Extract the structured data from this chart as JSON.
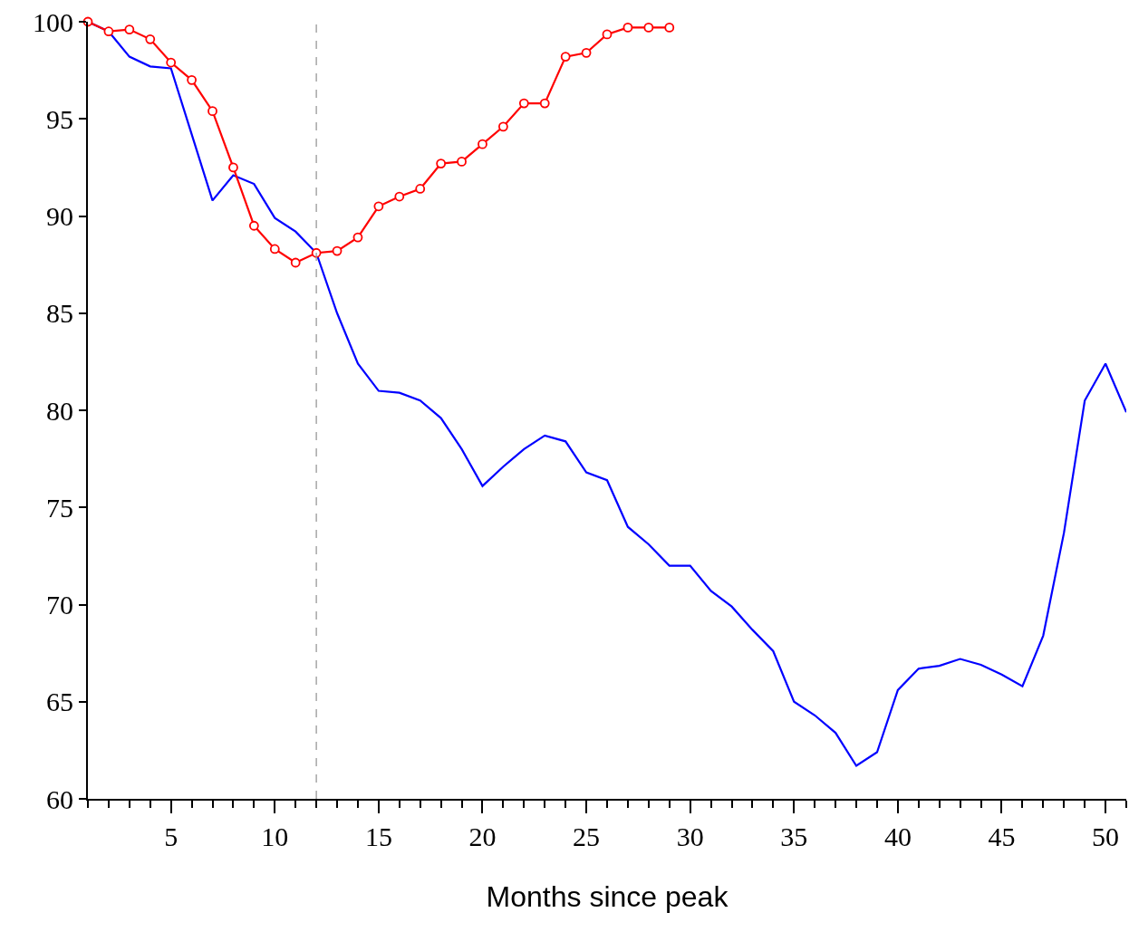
{
  "chart_data": {
    "type": "line",
    "xlabel": "Months since peak",
    "x": [
      1,
      2,
      3,
      4,
      5,
      6,
      7,
      8,
      9,
      10,
      11,
      12,
      13,
      14,
      15,
      16,
      17,
      18,
      19,
      20,
      21,
      22,
      23,
      24,
      25,
      26,
      27,
      28,
      29,
      30,
      31,
      32,
      33,
      34,
      35,
      36,
      37,
      38,
      39,
      40,
      41,
      42,
      43,
      44,
      45,
      46,
      47,
      48,
      49,
      50,
      51
    ],
    "series": [
      {
        "color": "#0000ff",
        "marker": "none",
        "values": [
          100,
          99.5,
          98.2,
          97.7,
          97.6,
          94.2,
          90.8,
          92.1,
          91.65,
          89.9,
          89.2,
          88.1,
          85.0,
          82.4,
          81.0,
          80.9,
          80.5,
          79.6,
          78.0,
          76.1,
          77.1,
          78.0,
          78.7,
          78.4,
          76.8,
          76.4,
          74.0,
          73.1,
          72.0,
          72.0,
          70.7,
          69.9,
          68.7,
          67.6,
          65.0,
          64.3,
          63.4,
          61.7,
          62.4,
          65.6,
          66.7,
          66.85,
          67.2,
          66.9,
          66.4,
          65.8,
          68.4,
          73.7,
          80.5,
          82.4,
          79.9
        ]
      },
      {
        "color": "#ff0000",
        "marker": "circle",
        "x": [
          1,
          2,
          3,
          4,
          5,
          6,
          7,
          8,
          9,
          10,
          11,
          12,
          13,
          14,
          15,
          16,
          17,
          18,
          19,
          20,
          21,
          22,
          23,
          24,
          25,
          26,
          27,
          28,
          29
        ],
        "values": [
          100,
          99.5,
          99.6,
          99.1,
          97.9,
          97.0,
          95.4,
          92.5,
          89.5,
          88.3,
          87.6,
          88.1,
          88.2,
          88.9,
          90.5,
          91.0,
          91.4,
          92.7,
          92.8,
          93.7,
          94.6,
          95.8,
          95.8,
          98.2,
          98.4,
          99.35,
          99.7,
          99.7,
          99.7
        ]
      }
    ],
    "xlim": [
      1,
      51
    ],
    "xticks": [
      {
        "value": 1,
        "label": null
      },
      {
        "value": 2,
        "label": null
      },
      {
        "value": 3,
        "label": null
      },
      {
        "value": 4,
        "label": null
      },
      5,
      {
        "value": 6,
        "label": null
      },
      {
        "value": 7,
        "label": null
      },
      {
        "value": 8,
        "label": null
      },
      {
        "value": 9,
        "label": null
      },
      10,
      {
        "value": 11,
        "label": null
      },
      {
        "value": 12,
        "label": null
      },
      {
        "value": 13,
        "label": null
      },
      {
        "value": 14,
        "label": null
      },
      15,
      {
        "value": 16,
        "label": null
      },
      {
        "value": 17,
        "label": null
      },
      {
        "value": 18,
        "label": null
      },
      {
        "value": 19,
        "label": null
      },
      20,
      {
        "value": 21,
        "label": null
      },
      {
        "value": 22,
        "label": null
      },
      {
        "value": 23,
        "label": null
      },
      {
        "value": 24,
        "label": null
      },
      25,
      {
        "value": 26,
        "label": null
      },
      {
        "value": 27,
        "label": null
      },
      {
        "value": 28,
        "label": null
      },
      {
        "value": 29,
        "label": null
      },
      30,
      {
        "value": 31,
        "label": null
      },
      {
        "value": 32,
        "label": null
      },
      {
        "value": 33,
        "label": null
      },
      {
        "value": 34,
        "label": null
      },
      35,
      {
        "value": 36,
        "label": null
      },
      {
        "value": 37,
        "label": null
      },
      {
        "value": 38,
        "label": null
      },
      {
        "value": 39,
        "label": null
      },
      40,
      {
        "value": 41,
        "label": null
      },
      {
        "value": 42,
        "label": null
      },
      {
        "value": 43,
        "label": null
      },
      {
        "value": 44,
        "label": null
      },
      45,
      {
        "value": 46,
        "label": null
      },
      {
        "value": 47,
        "label": null
      },
      {
        "value": 48,
        "label": null
      },
      {
        "value": 49,
        "label": null
      },
      50,
      {
        "value": 51,
        "label": null
      }
    ],
    "ylim": [
      60,
      100
    ],
    "yticks": [
      60,
      65,
      70,
      75,
      80,
      85,
      90,
      95,
      100
    ],
    "ref_lines": [
      {
        "axis": "x",
        "value": 12,
        "color": "#999999",
        "line_style": "dashed"
      }
    ],
    "line_style": "solid"
  }
}
